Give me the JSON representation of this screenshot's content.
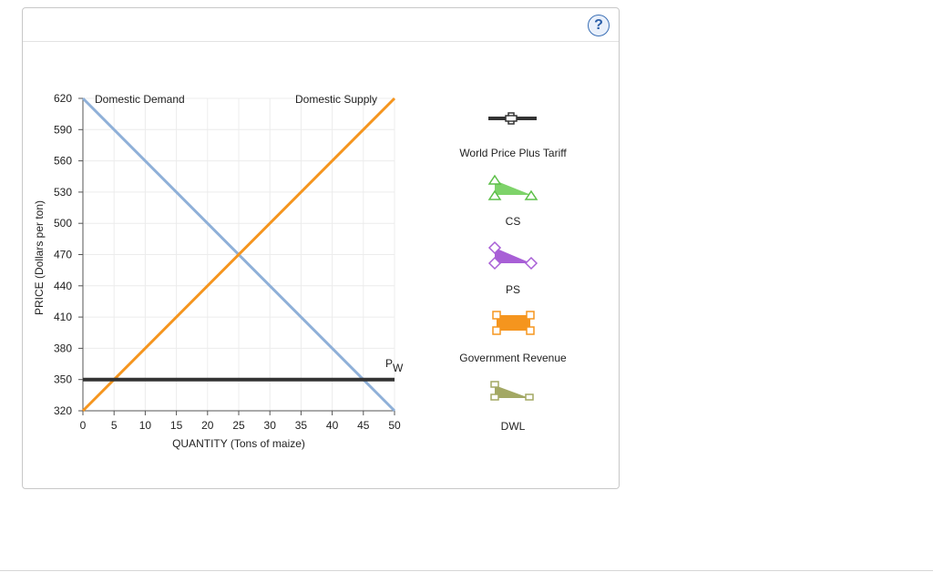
{
  "help": {
    "label": "?"
  },
  "chart_data": {
    "type": "line",
    "title": "",
    "xlabel": "QUANTITY (Tons of maize)",
    "ylabel": "PRICE (Dollars per ton)",
    "xlim": [
      0,
      50
    ],
    "ylim": [
      320,
      620
    ],
    "x_ticks": [
      0,
      5,
      10,
      15,
      20,
      25,
      30,
      35,
      40,
      45,
      50
    ],
    "y_ticks": [
      320,
      350,
      380,
      410,
      440,
      470,
      500,
      530,
      560,
      590,
      620
    ],
    "grid": true,
    "series": [
      {
        "name": "Domestic Demand",
        "color": "#8fb0d8",
        "points": [
          [
            0,
            620
          ],
          [
            50,
            320
          ]
        ]
      },
      {
        "name": "Domestic Supply",
        "color": "#f5951e",
        "points": [
          [
            0,
            320
          ],
          [
            50,
            620
          ]
        ]
      },
      {
        "name": "PW",
        "color": "#333333",
        "points": [
          [
            0,
            350
          ],
          [
            50,
            350
          ]
        ]
      }
    ],
    "labels": {
      "demand": "Domestic Demand",
      "supply": "Domestic Supply",
      "pw_main": "P",
      "pw_sub": "W"
    }
  },
  "palette": {
    "items": [
      {
        "id": "world-price-plus-tariff",
        "label": "World Price Plus Tariff",
        "color": "#333333"
      },
      {
        "id": "cs",
        "label": "CS",
        "color": "#7ed36a"
      },
      {
        "id": "ps",
        "label": "PS",
        "color": "#a85fd6"
      },
      {
        "id": "government-revenue",
        "label": "Government Revenue",
        "color": "#f5951e"
      },
      {
        "id": "dwl",
        "label": "DWL",
        "color": "#a3a864"
      }
    ]
  }
}
